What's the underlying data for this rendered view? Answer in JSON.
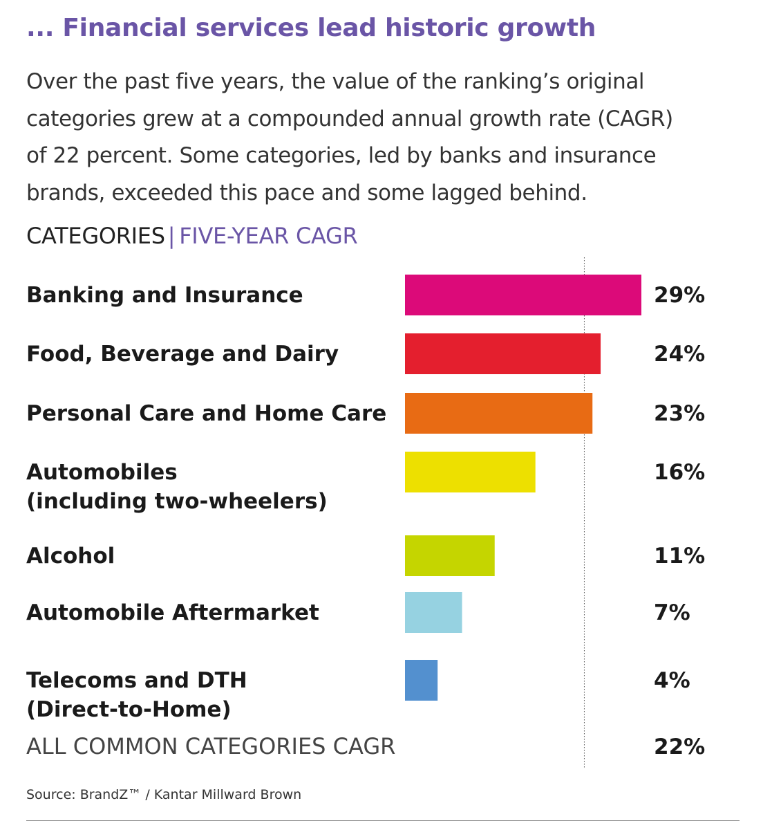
{
  "title": "... Financial services lead historic growth",
  "intro_lines": [
    "Over the past five years, the value of the ranking’s original",
    "categories grew at a compounded annual growth rate (CAGR)",
    "of 22 percent. Some categories, led by banks and insurance",
    "brands, exceeded this pace and some lagged behind."
  ],
  "header": {
    "left": "CATEGORIES",
    "separator": "|",
    "right": "FIVE-YEAR CAGR"
  },
  "chart_data": {
    "type": "bar",
    "orientation": "horizontal",
    "categories": [
      [
        "Banking and Insurance"
      ],
      [
        "Food, Beverage and Dairy"
      ],
      [
        "Personal Care and Home Care"
      ],
      [
        "Automobiles",
        "(including two-wheelers)"
      ],
      [
        "Alcohol"
      ],
      [
        "Automobile Aftermarket"
      ],
      [
        "Telecoms and DTH",
        "(Direct-to-Home)"
      ]
    ],
    "values": [
      29,
      24,
      23,
      16,
      11,
      7,
      4
    ],
    "value_labels": [
      "29%",
      "24%",
      "23%",
      "16%",
      "11%",
      "7%",
      "4%"
    ],
    "colors": [
      "#dc0a79",
      "#e41f2e",
      "#e86b14",
      "#ede000",
      "#c5d500",
      "#96d2e1",
      "#5390cf"
    ],
    "reference": {
      "label": "ALL COMMON CATEGORIES CAGR",
      "value": 22,
      "value_label": "22%",
      "line_style": "dotted"
    },
    "grid": false,
    "legend": "none"
  },
  "source": "Source: BrandZ™ / Kantar Millward Brown"
}
